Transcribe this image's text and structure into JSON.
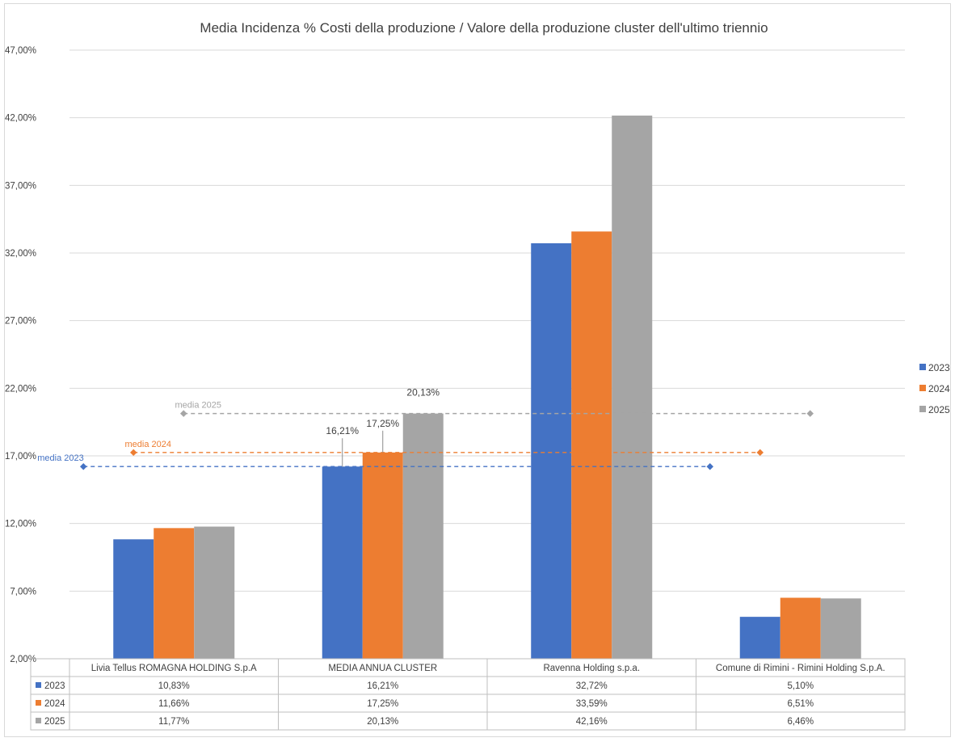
{
  "chart_data": {
    "type": "bar",
    "title": "Media Incidenza % Costi della produzione / Valore della produzione cluster dell'ultimo triennio",
    "categories": [
      "Livia Tellus ROMAGNA HOLDING S.p.A",
      "MEDIA ANNUA CLUSTER",
      "Ravenna Holding s.p.a.",
      "Comune di Rimini - Rimini Holding S.p.A."
    ],
    "series": [
      {
        "name": "2023",
        "color": "#4472c4",
        "values": [
          10.83,
          16.21,
          32.72,
          5.1
        ],
        "labels": [
          "10,83%",
          "16,21%",
          "32,72%",
          "5,10%"
        ]
      },
      {
        "name": "2024",
        "color": "#ed7d31",
        "values": [
          11.66,
          17.25,
          33.59,
          6.51
        ],
        "labels": [
          "11,66%",
          "17,25%",
          "33,59%",
          "6,51%"
        ]
      },
      {
        "name": "2025",
        "color": "#a5a5a5",
        "values": [
          11.77,
          20.13,
          42.16,
          6.46
        ],
        "labels": [
          "11,77%",
          "20,13%",
          "42,16%",
          "6,46%"
        ]
      }
    ],
    "ylim": [
      2,
      47
    ],
    "yticks": [
      2,
      7,
      12,
      17,
      22,
      27,
      32,
      37,
      42,
      47
    ],
    "ytick_labels": [
      "2,00%",
      "7,00%",
      "12,00%",
      "17,00%",
      "22,00%",
      "27,00%",
      "32,00%",
      "37,00%",
      "42,00%",
      "47,00%"
    ],
    "grid": true,
    "legend_position": "right",
    "data_labels": [
      {
        "series": "2023",
        "category": "MEDIA ANNUA CLUSTER",
        "text": "16,21%"
      },
      {
        "series": "2024",
        "category": "MEDIA ANNUA CLUSTER",
        "text": "17,25%"
      },
      {
        "series": "2025",
        "category": "MEDIA ANNUA CLUSTER",
        "text": "20,13%"
      }
    ],
    "average_lines": [
      {
        "label": "media 2023",
        "series": "2023",
        "value": 16.21,
        "color": "#4472c4"
      },
      {
        "label": "media 2024",
        "series": "2024",
        "value": 17.25,
        "color": "#ed7d31"
      },
      {
        "label": "media 2025",
        "series": "2025",
        "value": 20.13,
        "color": "#a5a5a5"
      }
    ],
    "data_table": true
  }
}
